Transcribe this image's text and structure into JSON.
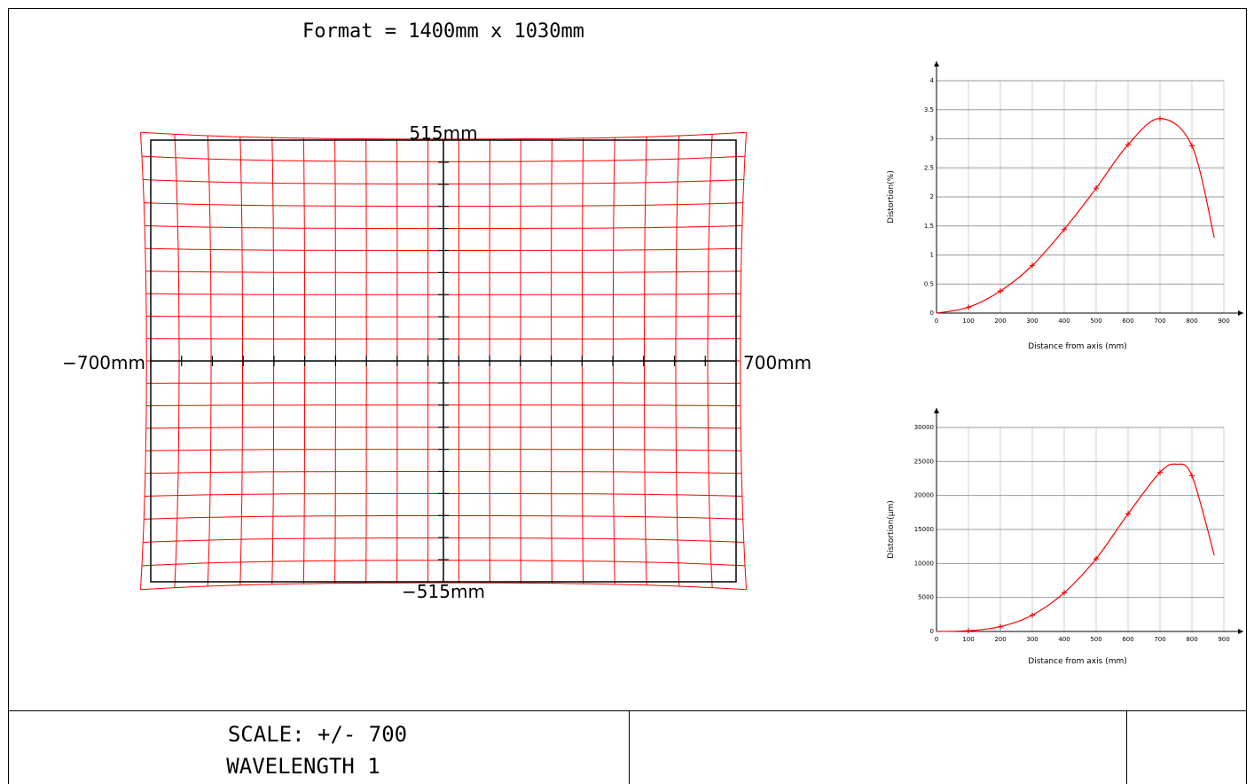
{
  "header": {
    "format_text": "Format = 1400mm x 1030mm"
  },
  "grid_plot": {
    "label_top": "515mm",
    "label_bottom": "−515mm",
    "label_left": "−700mm",
    "label_right": "700mm",
    "ideal_grid_color": "#000000",
    "distorted_grid_color": "#ff0000"
  },
  "chart_data": [
    {
      "type": "line",
      "xlabel": "Distance from axis (mm)",
      "ylabel": "Distortion(%)",
      "xlim": [
        0,
        900
      ],
      "ylim": [
        0,
        4
      ],
      "x_ticks": [
        0,
        100,
        200,
        300,
        400,
        500,
        600,
        700,
        800,
        900
      ],
      "y_ticks": [
        0,
        0.5,
        1,
        1.5,
        2,
        2.5,
        3,
        3.5,
        4
      ],
      "grid": true,
      "color": "#ff0000",
      "series": [
        {
          "x": [
            0,
            100,
            200,
            300,
            400,
            500,
            600,
            700,
            800,
            870
          ],
          "y": [
            0,
            0.1,
            0.38,
            0.82,
            1.44,
            2.15,
            2.9,
            3.35,
            2.88,
            1.3
          ]
        }
      ],
      "markers_x": [
        100,
        200,
        300,
        400,
        500,
        600,
        700,
        800
      ]
    },
    {
      "type": "line",
      "xlabel": "Distance from axis (mm)",
      "ylabel": "Distortion(µm)",
      "xlim": [
        0,
        900
      ],
      "ylim": [
        0,
        30000
      ],
      "x_ticks": [
        0,
        100,
        200,
        300,
        400,
        500,
        600,
        700,
        800,
        900
      ],
      "y_ticks": [
        0,
        5000,
        10000,
        15000,
        20000,
        25000,
        30000
      ],
      "grid": true,
      "color": "#ff0000",
      "series": [
        {
          "x": [
            0,
            100,
            200,
            300,
            400,
            500,
            600,
            700,
            750,
            800,
            870
          ],
          "y": [
            0,
            100,
            700,
            2400,
            5700,
            10700,
            17300,
            23400,
            24600,
            22900,
            11200
          ]
        }
      ],
      "markers_x": [
        100,
        200,
        300,
        400,
        500,
        600,
        700,
        800
      ]
    }
  ],
  "footer": {
    "scale_text": "SCALE: +/- 700",
    "wavelength_text": "WAVELENGTH 1"
  }
}
